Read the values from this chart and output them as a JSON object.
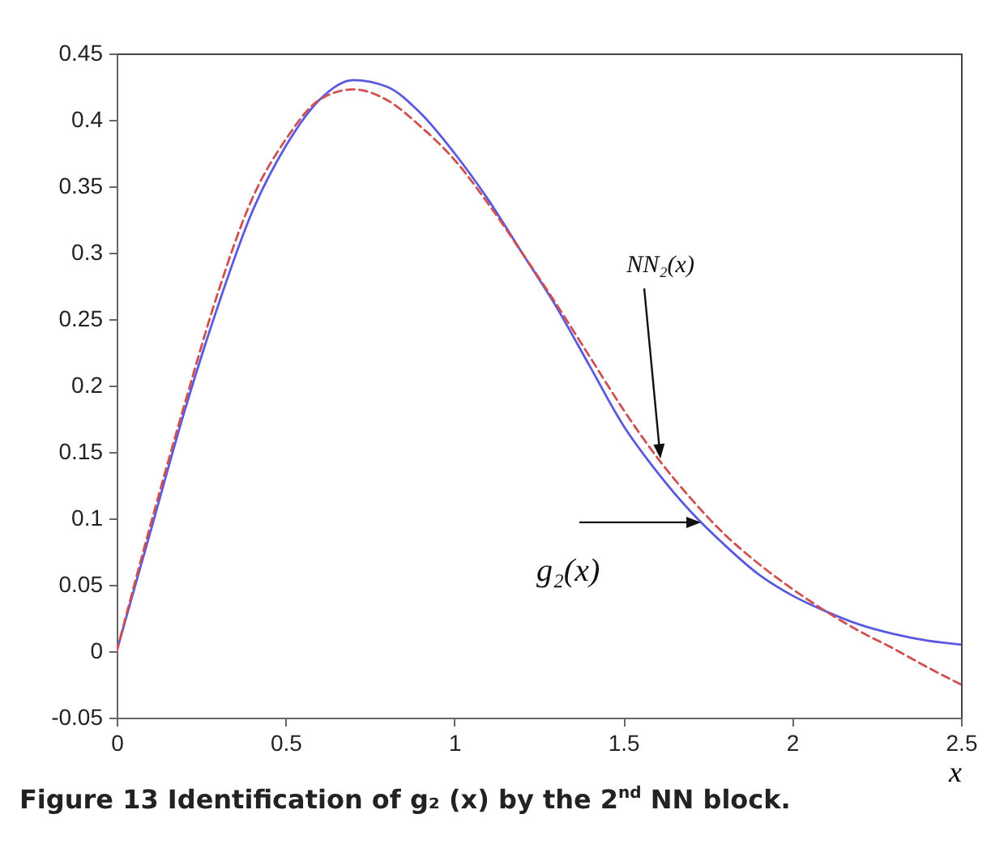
{
  "chart_data": {
    "type": "line",
    "x": [
      0,
      0.1,
      0.2,
      0.3,
      0.4,
      0.5,
      0.6,
      0.7,
      0.8,
      0.9,
      1.0,
      1.1,
      1.2,
      1.3,
      1.4,
      1.5,
      1.6,
      1.7,
      1.8,
      1.9,
      2.0,
      2.1,
      2.2,
      2.3,
      2.4,
      2.5
    ],
    "series": [
      {
        "color": "#5a5ae0",
        "line_style": "solid",
        "values": [
          0,
          0.09,
          0.18,
          0.26,
          0.33,
          0.38,
          0.415,
          0.43,
          0.425,
          0.405,
          0.375,
          0.34,
          0.3,
          0.26,
          0.215,
          0.17,
          0.135,
          0.105,
          0.08,
          0.058,
          0.042,
          0.03,
          0.02,
          0.013,
          0.008,
          0.005
        ]
      },
      {
        "color": "#d05050",
        "line_style": "dashed",
        "values": [
          0,
          0.095,
          0.185,
          0.27,
          0.34,
          0.385,
          0.415,
          0.423,
          0.415,
          0.395,
          0.37,
          0.337,
          0.3,
          0.262,
          0.222,
          0.182,
          0.146,
          0.115,
          0.088,
          0.066,
          0.047,
          0.03,
          0.015,
          0.002,
          -0.012,
          -0.025
        ]
      }
    ],
    "xlabel": "x",
    "xlim": [
      0,
      2.5
    ],
    "xticks": [
      0,
      0.5,
      1,
      1.5,
      2,
      2.5
    ],
    "ylim": [
      -0.05,
      0.45
    ],
    "yticks": [
      -0.05,
      0,
      0.05,
      0.1,
      0.15,
      0.2,
      0.25,
      0.3,
      0.35,
      0.4,
      0.45
    ],
    "grid": false,
    "annotations": [
      {
        "text": "NN₂(x)",
        "x": 1.61,
        "y": 0.145
      },
      {
        "text": "g₂(x)",
        "x": 1.73,
        "y": 0.097
      },
      "Figure 13 Identification of g₂ (x) by the 2$^{nd}$ NN block."
    ]
  }
}
